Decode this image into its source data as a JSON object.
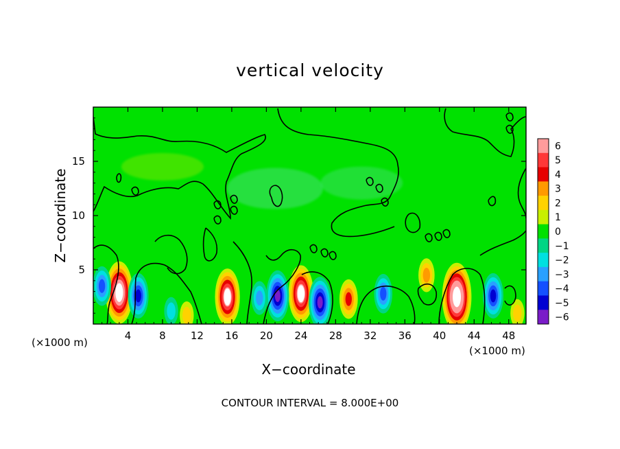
{
  "chart_data": {
    "type": "heatmap",
    "title": "vertical velocity",
    "xlabel": "X−coordinate",
    "ylabel": "Z−coordinate",
    "x_unit_left": "(×1000 m)",
    "x_unit_right": "(×1000 m)",
    "footnote": "CONTOUR INTERVAL = 8.000E+00",
    "xlim": [
      0,
      50
    ],
    "ylim": [
      0,
      20
    ],
    "x_ticks": [
      "4",
      "8",
      "12",
      "16",
      "20",
      "24",
      "28",
      "32",
      "36",
      "40",
      "44",
      "48"
    ],
    "y_ticks": [
      "5",
      "10",
      "15"
    ],
    "colorbar": {
      "levels": [
        "6",
        "5",
        "4",
        "3",
        "2",
        "1",
        "0",
        "−1",
        "−2",
        "−3",
        "−4",
        "−5",
        "−6"
      ],
      "colors": [
        "#ff9c9c",
        "#ff3838",
        "#e60000",
        "#ff9a00",
        "#ffd200",
        "#c8f000",
        "#00e100",
        "#00d684",
        "#00e0e0",
        "#2aa0ff",
        "#1450ff",
        "#0000d2",
        "#7a1cc8"
      ]
    },
    "background_color": "#00e100",
    "updrafts": [
      {
        "x": 3.0,
        "z": 2.9,
        "w": 8
      },
      {
        "x": 15.5,
        "z": 2.5,
        "w": 7
      },
      {
        "x": 24.0,
        "z": 2.8,
        "w": 7
      },
      {
        "x": 29.5,
        "z": 2.3,
        "w": 4
      },
      {
        "x": 42.0,
        "z": 2.5,
        "w": 9
      },
      {
        "x": 38.5,
        "z": 4.5,
        "w": 3
      },
      {
        "x": 10.8,
        "z": 0.8,
        "w": 2
      },
      {
        "x": 49.0,
        "z": 1.0,
        "w": 2
      }
    ],
    "downdrafts": [
      {
        "x": 5.2,
        "z": 2.6,
        "w": -5
      },
      {
        "x": 1.0,
        "z": 3.5,
        "w": -4
      },
      {
        "x": 21.3,
        "z": 2.6,
        "w": -6
      },
      {
        "x": 26.2,
        "z": 2.0,
        "w": -6
      },
      {
        "x": 33.5,
        "z": 2.8,
        "w": -4
      },
      {
        "x": 46.2,
        "z": 2.6,
        "w": -5
      },
      {
        "x": 19.2,
        "z": 2.4,
        "w": -3
      },
      {
        "x": 9.0,
        "z": 1.2,
        "w": -2
      }
    ]
  }
}
